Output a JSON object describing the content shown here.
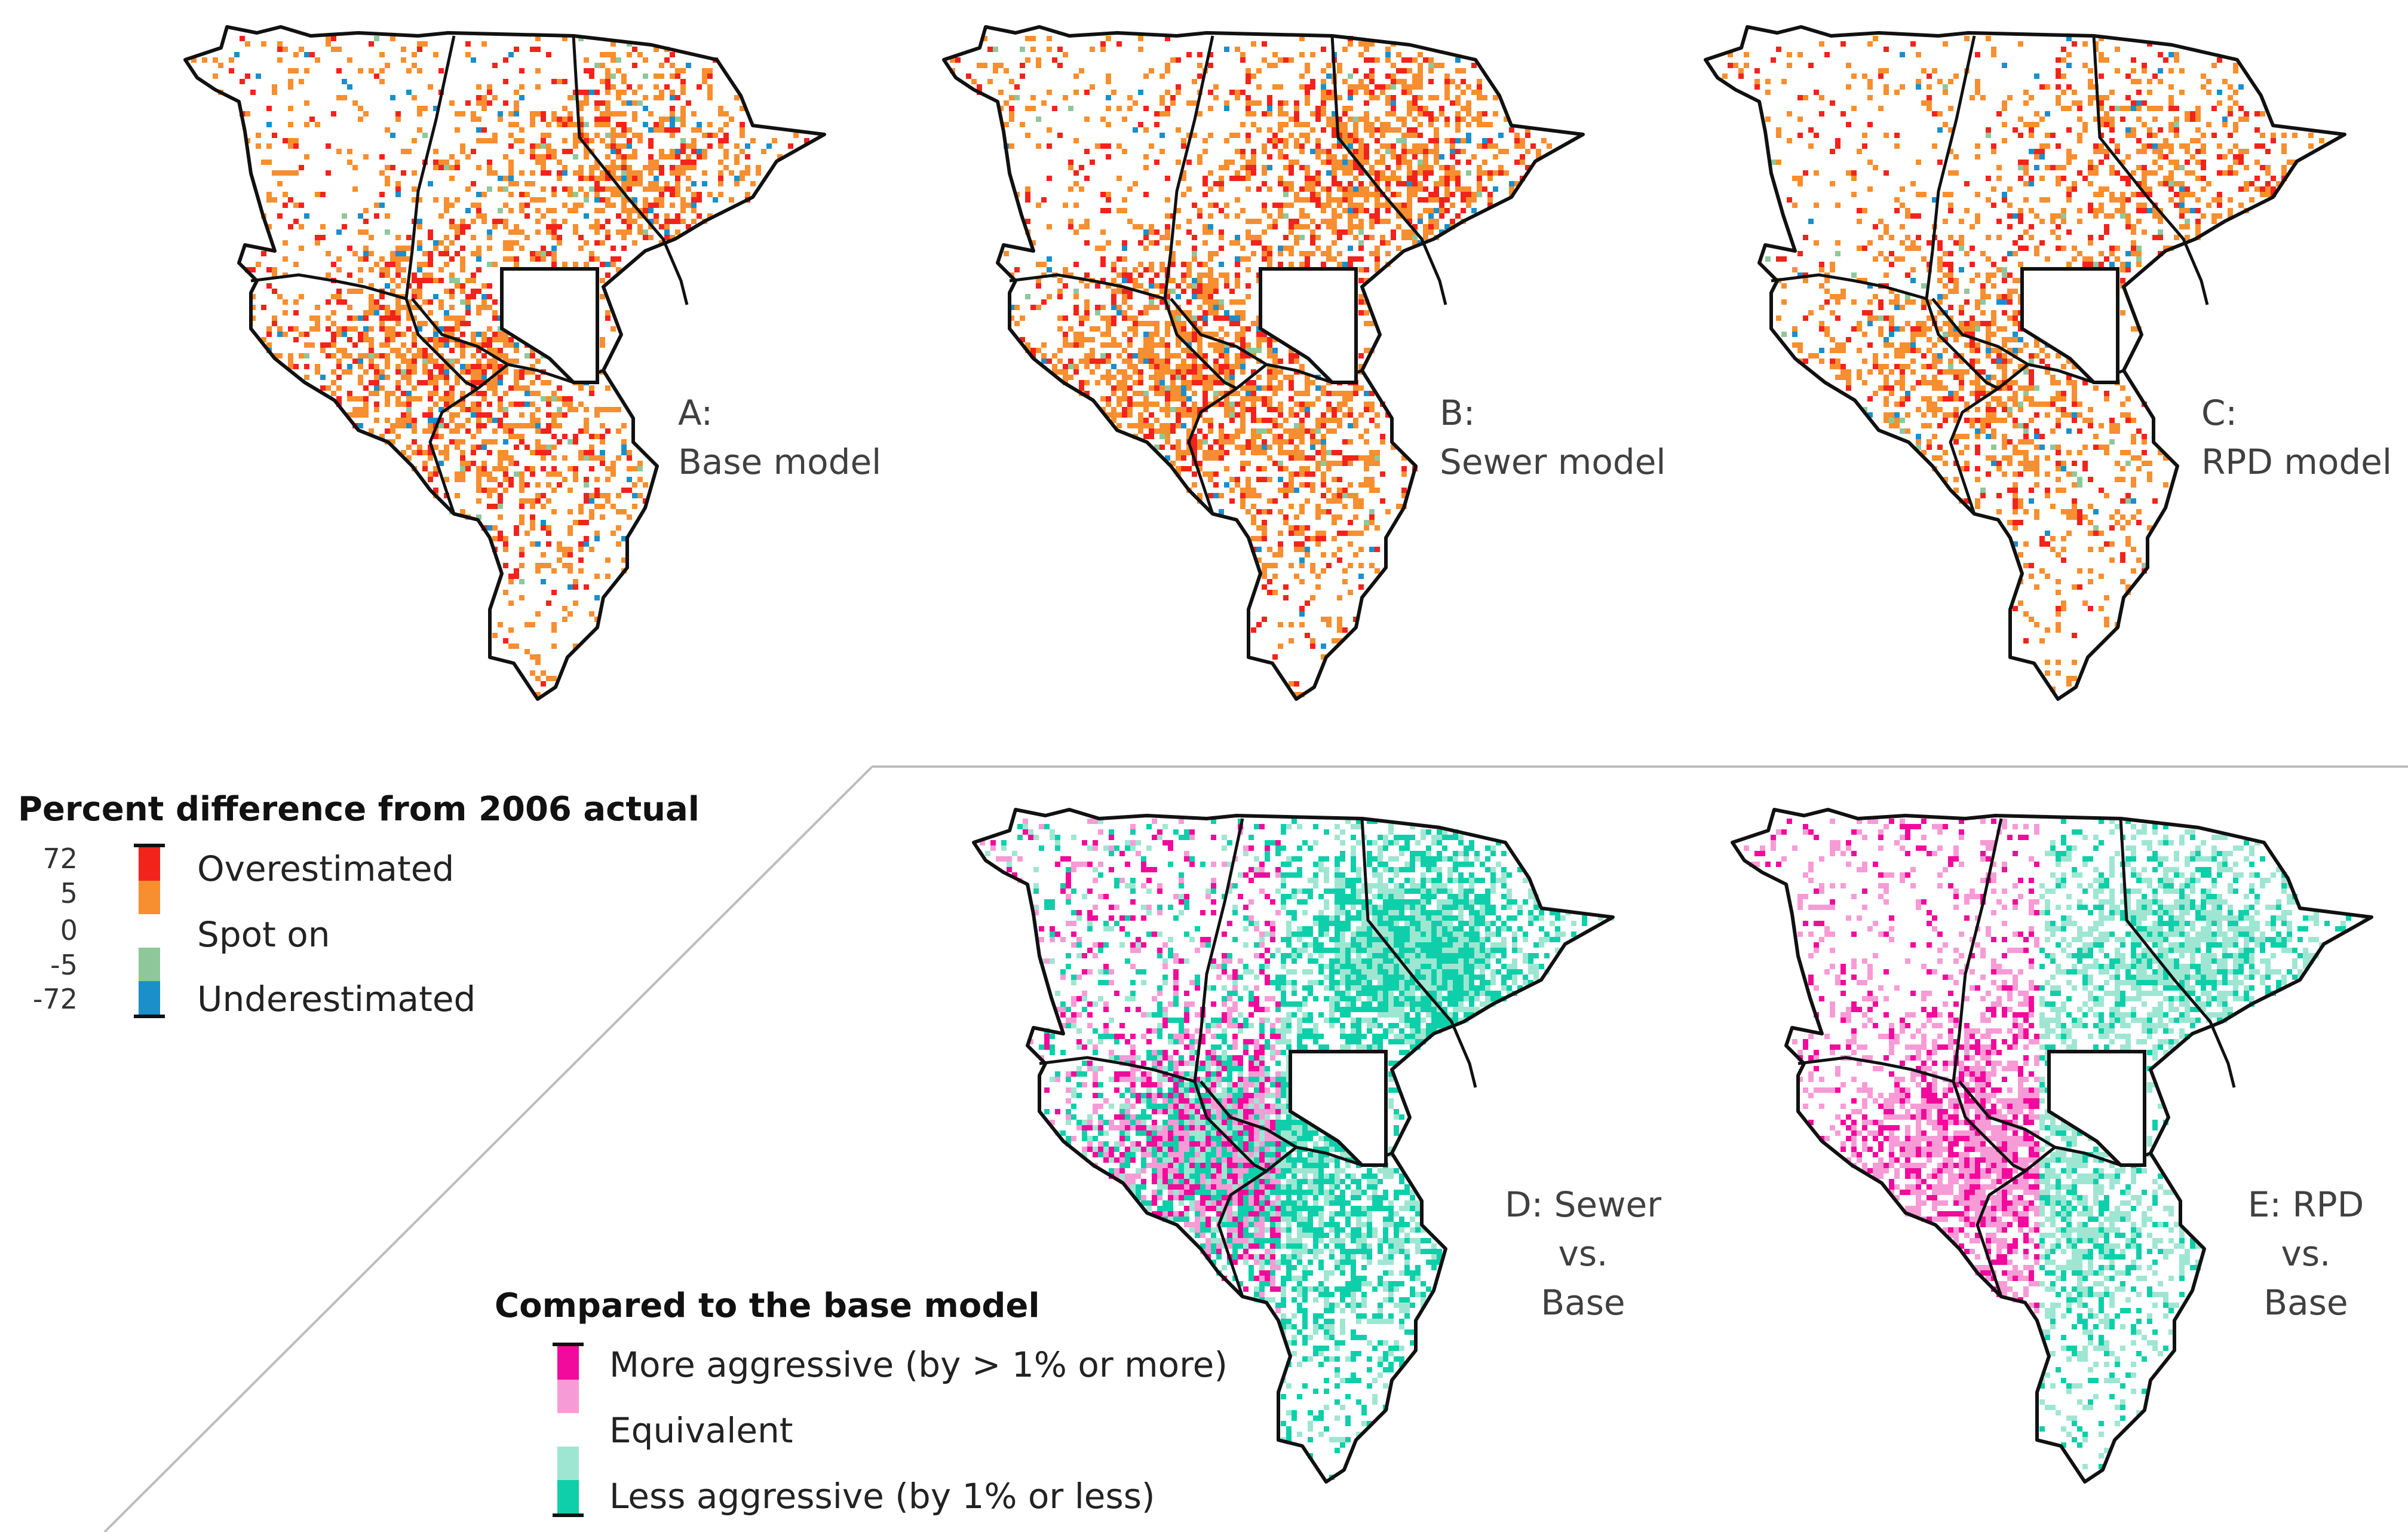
{
  "maps": [
    {
      "id": "A",
      "line1": "A:",
      "line2": "Base model",
      "line3": "",
      "palette": "diff",
      "seed": 11,
      "density": 0.34
    },
    {
      "id": "B",
      "line1": "B:",
      "line2": "Sewer model",
      "line3": "",
      "palette": "diff",
      "seed": 23,
      "density": 0.42
    },
    {
      "id": "C",
      "line1": "C:",
      "line2": "RPD model",
      "line3": "",
      "palette": "diff",
      "seed": 37,
      "density": 0.28
    },
    {
      "id": "D",
      "line1": "D: Sewer",
      "line2": "vs.",
      "line3": "Base",
      "palette": "compare",
      "seed": 51,
      "density": 0.62
    },
    {
      "id": "E",
      "line1": "E: RPD",
      "line2": "vs.",
      "line3": "Base",
      "palette": "compare",
      "seed": 67,
      "density": 0.48
    }
  ],
  "legend_difference": {
    "title": "Percent difference from 2006 actual",
    "ticks": [
      "72",
      "5",
      "0",
      "-5",
      "-72"
    ],
    "labels": [
      "Overestimated",
      "Spot on",
      "Underestimated"
    ],
    "colors": {
      "high": "#f2231b",
      "mid_high": "#f78e2f",
      "zero": "#ffffff",
      "mid_low": "#8ec89a",
      "low": "#1a8fca"
    }
  },
  "legend_compare": {
    "title": "Compared to the base model",
    "labels": [
      "More aggressive (by > 1% or more)",
      "Equivalent",
      "Less aggressive (by 1% or less)"
    ],
    "colors": {
      "strong_more": "#f20a9c",
      "more": "#f79bd6",
      "equal": "#ffffff",
      "less": "#9fe6d2",
      "strong_less": "#0fcfaa"
    }
  }
}
